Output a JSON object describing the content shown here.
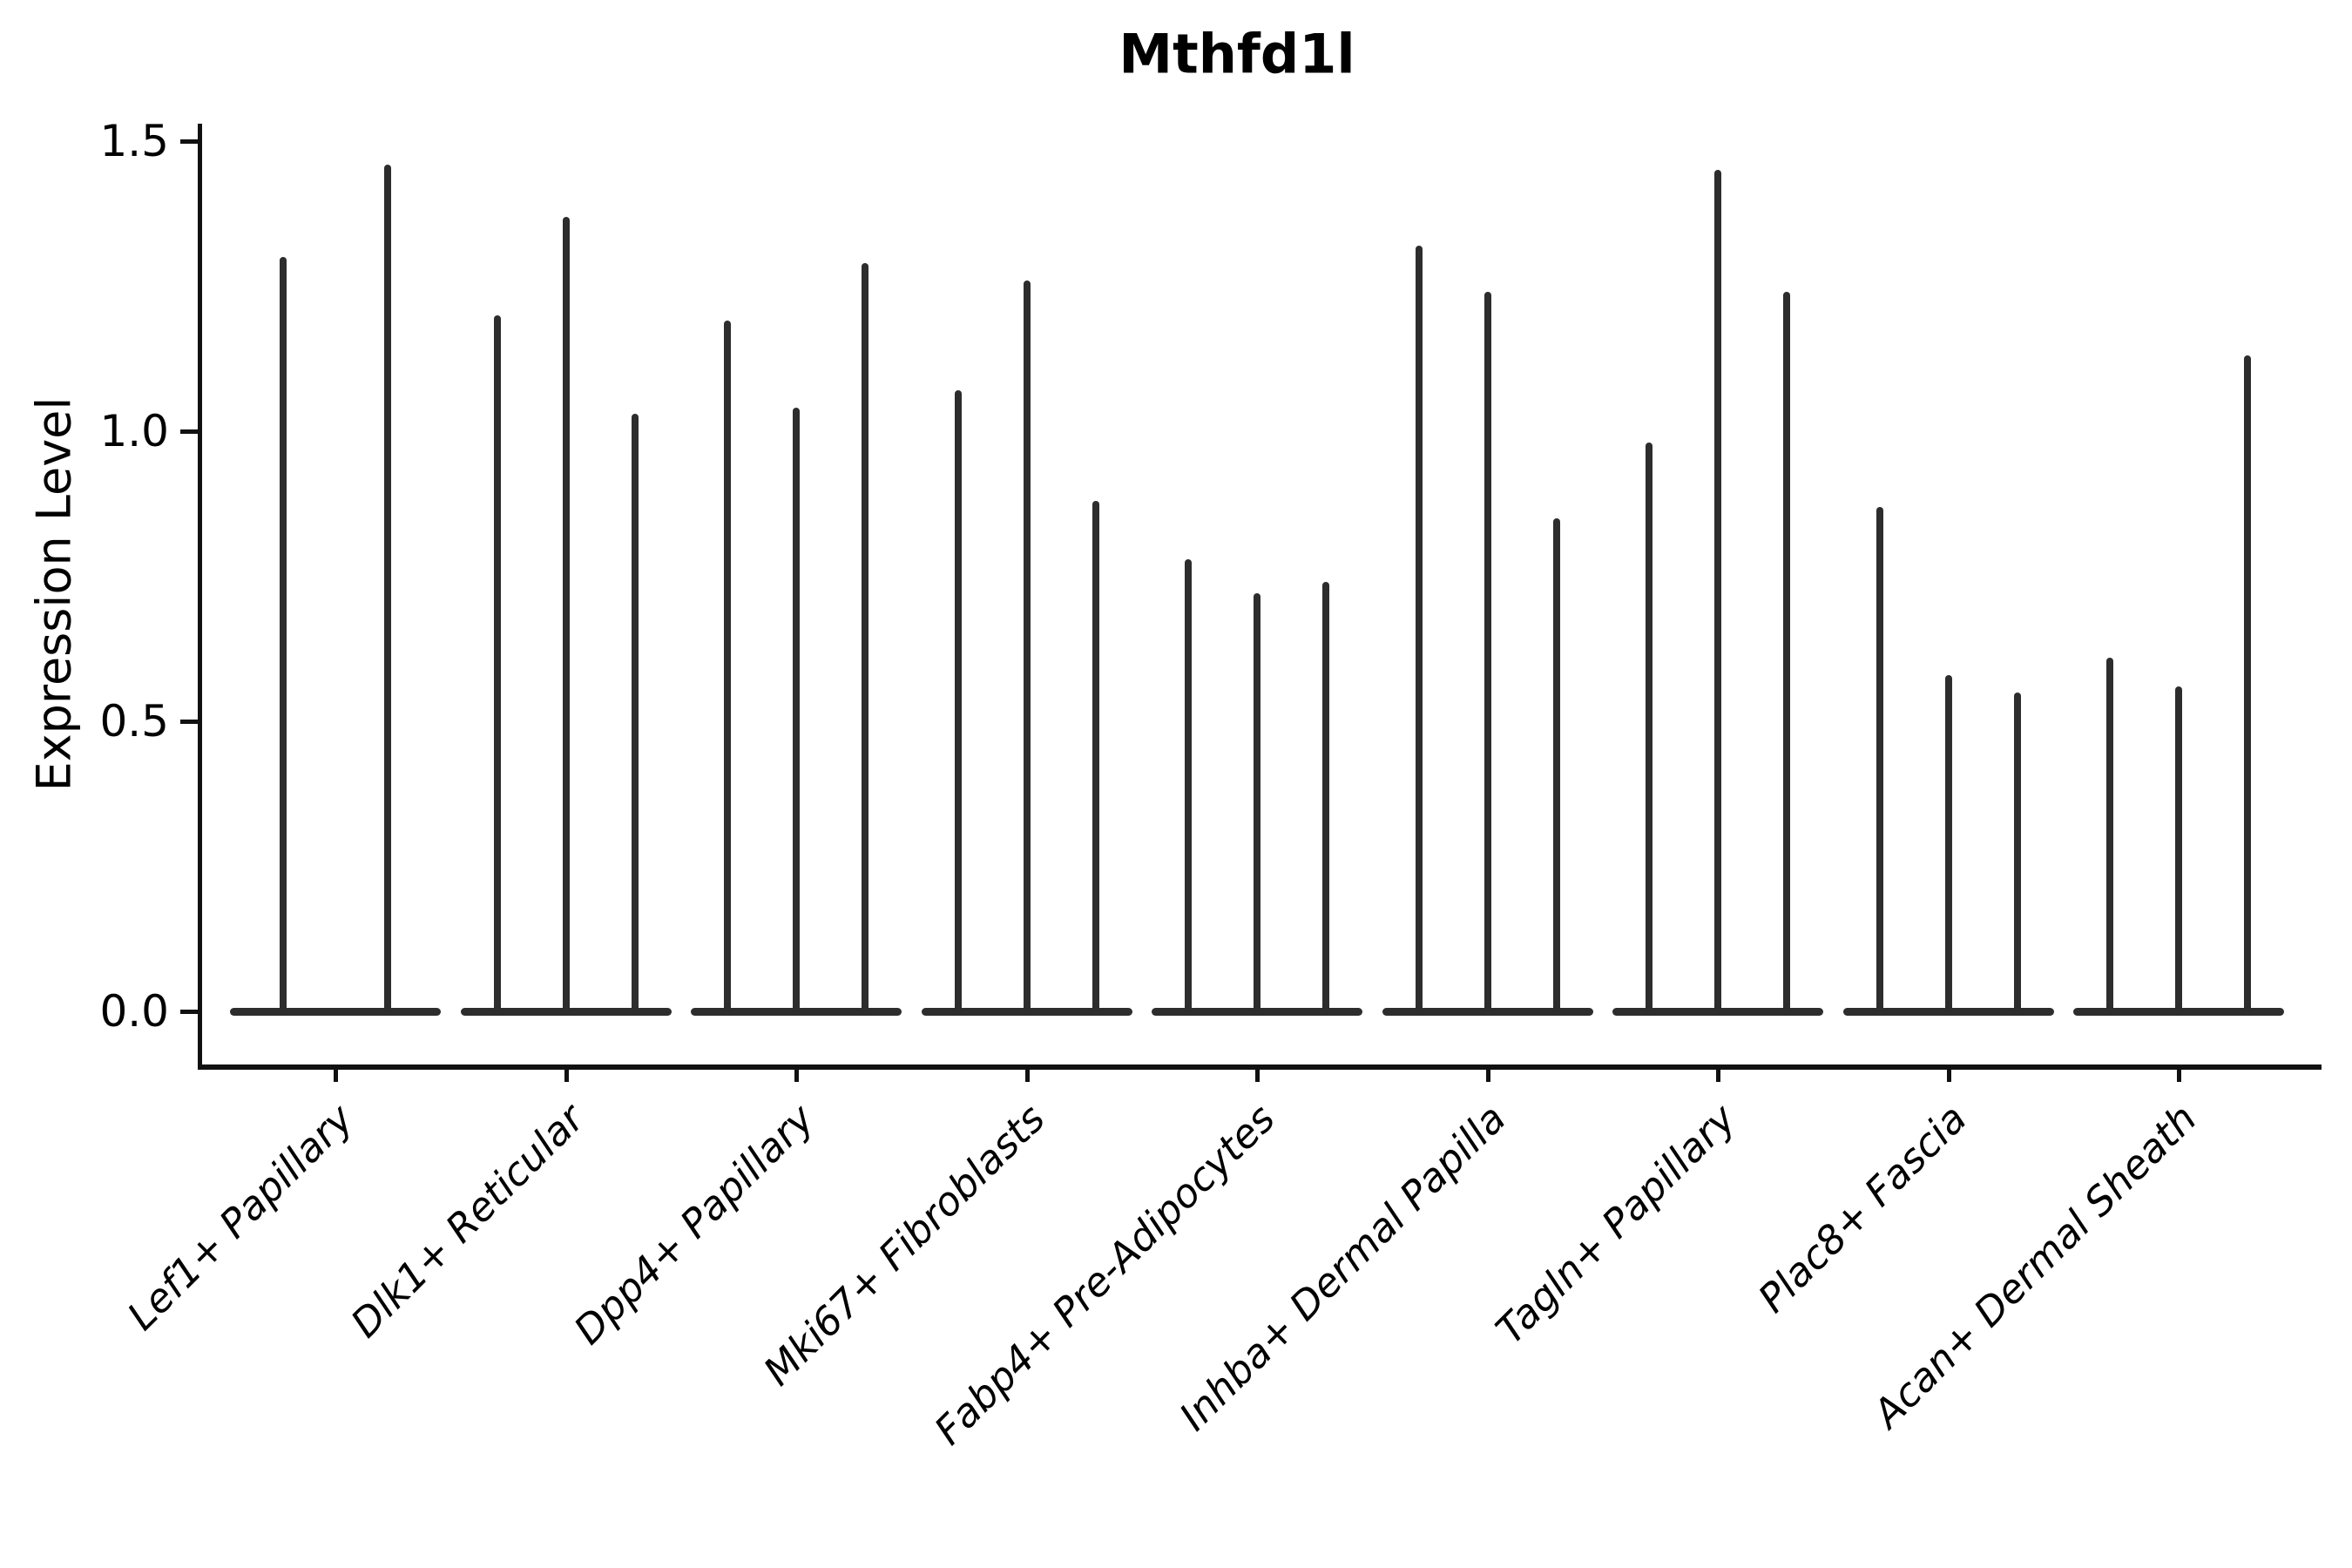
{
  "chart_data": {
    "type": "violin",
    "title": "Mthfd1l",
    "ylabel": "Expression Level",
    "xlabel": "",
    "ylim": [
      0,
      1.55
    ],
    "grid": false,
    "legend": "none",
    "yticks": [
      {
        "label": "0.0",
        "value": 0.0
      },
      {
        "label": "0.5",
        "value": 0.5
      },
      {
        "label": "1.0",
        "value": 1.0
      },
      {
        "label": "1.5",
        "value": 1.5
      }
    ],
    "groups": [
      {
        "label": "Lef1+ Papillary",
        "violin_peaks": [
          1.3,
          1.46
        ]
      },
      {
        "label": "Dlk1+ Reticular",
        "violin_peaks": [
          1.2,
          1.37,
          1.03
        ]
      },
      {
        "label": "Dpp4+ Papillary",
        "violin_peaks": [
          1.19,
          1.04,
          1.29
        ]
      },
      {
        "label": "Mki67+ Fibroblasts",
        "violin_peaks": [
          1.07,
          1.26,
          0.88
        ]
      },
      {
        "label": "Fabp4+ Pre-Adipocytes",
        "violin_peaks": [
          0.78,
          0.72,
          0.74
        ]
      },
      {
        "label": "Inhba+ Dermal Papilla",
        "violin_peaks": [
          1.32,
          1.24,
          0.85
        ]
      },
      {
        "label": "Tagln+ Papillary",
        "violin_peaks": [
          0.98,
          1.45,
          1.24
        ]
      },
      {
        "label": "Plac8+ Fascia",
        "violin_peaks": [
          0.87,
          0.58,
          0.55
        ]
      },
      {
        "label": "Acan+ Dermal Sheath",
        "violin_peaks": [
          0.61,
          0.56,
          1.13
        ]
      }
    ],
    "violins_are_near_zero_density": true
  },
  "colors": {
    "violin": "#2d2d2d",
    "axis": "#111111",
    "text": "#000000"
  }
}
